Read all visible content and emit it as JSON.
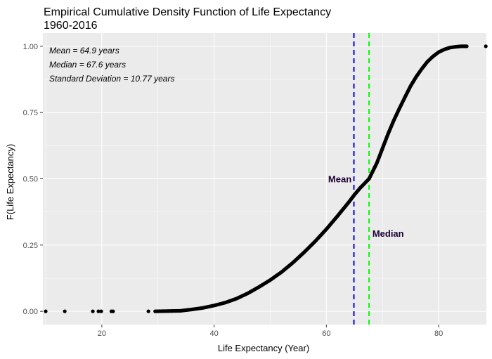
{
  "chart_data": {
    "type": "scatter",
    "title": "Empirical Cumulative Density Function of Life Expectancy",
    "subtitle": "1960-2016",
    "xlabel": "Life Expectancy (Year)",
    "ylabel": "F(Life Expectancy)",
    "xlim": [
      9.5,
      88.5
    ],
    "ylim": [
      -0.05,
      1.05
    ],
    "x_ticks": [
      20,
      40,
      60,
      80
    ],
    "x_tick_labels": [
      "20",
      "40",
      "60",
      "80"
    ],
    "y_ticks": [
      0,
      0.25,
      0.5,
      0.75,
      1.0
    ],
    "y_tick_labels": [
      "0.00",
      "0.25",
      "0.50",
      "0.75",
      "1.00"
    ],
    "grid": true,
    "outlier_points": [
      {
        "x": 10.0,
        "y": 0.0
      },
      {
        "x": 13.4,
        "y": 0.0
      },
      {
        "x": 18.4,
        "y": 0.0
      },
      {
        "x": 19.4,
        "y": 0.0
      },
      {
        "x": 19.9,
        "y": 0.0
      },
      {
        "x": 21.7,
        "y": 0.0
      },
      {
        "x": 22.0,
        "y": 0.0
      },
      {
        "x": 28.3,
        "y": 0.0
      },
      {
        "x": 88.4,
        "y": 1.0
      }
    ],
    "curve_points": [
      {
        "x": 29.5,
        "y": 0.0
      },
      {
        "x": 34,
        "y": 0.002
      },
      {
        "x": 36,
        "y": 0.007
      },
      {
        "x": 38,
        "y": 0.013
      },
      {
        "x": 40,
        "y": 0.022
      },
      {
        "x": 42,
        "y": 0.033
      },
      {
        "x": 44,
        "y": 0.048
      },
      {
        "x": 46,
        "y": 0.068
      },
      {
        "x": 48,
        "y": 0.092
      },
      {
        "x": 50,
        "y": 0.118
      },
      {
        "x": 52,
        "y": 0.148
      },
      {
        "x": 54,
        "y": 0.183
      },
      {
        "x": 56,
        "y": 0.222
      },
      {
        "x": 58,
        "y": 0.264
      },
      {
        "x": 60,
        "y": 0.31
      },
      {
        "x": 62,
        "y": 0.36
      },
      {
        "x": 64,
        "y": 0.412
      },
      {
        "x": 65,
        "y": 0.44
      },
      {
        "x": 66,
        "y": 0.465
      },
      {
        "x": 67.6,
        "y": 0.5
      },
      {
        "x": 69,
        "y": 0.56
      },
      {
        "x": 70,
        "y": 0.615
      },
      {
        "x": 71,
        "y": 0.67
      },
      {
        "x": 72,
        "y": 0.72
      },
      {
        "x": 73,
        "y": 0.765
      },
      {
        "x": 74,
        "y": 0.808
      },
      {
        "x": 75,
        "y": 0.85
      },
      {
        "x": 76,
        "y": 0.885
      },
      {
        "x": 77,
        "y": 0.915
      },
      {
        "x": 78,
        "y": 0.942
      },
      {
        "x": 79,
        "y": 0.962
      },
      {
        "x": 80,
        "y": 0.978
      },
      {
        "x": 81,
        "y": 0.988
      },
      {
        "x": 82,
        "y": 0.995
      },
      {
        "x": 83,
        "y": 0.998
      },
      {
        "x": 84,
        "y": 1.0
      },
      {
        "x": 85,
        "y": 1.0
      }
    ],
    "reference_lines": [
      {
        "label": "Mean",
        "x": 64.9,
        "color": "#0000ff"
      },
      {
        "label": "Median",
        "x": 67.6,
        "color": "#00ff00"
      }
    ],
    "annotations": [
      {
        "name": "mean-label",
        "text": "Mean",
        "x": 62.4,
        "y": 0.5
      },
      {
        "name": "median-label",
        "text": "Median",
        "x": 71.0,
        "y": 0.295
      }
    ],
    "stats_text": [
      "Mean = 64.9 years",
      "Median = 67.6 years",
      "Standard Deviation =  10.77 years"
    ],
    "colors": {
      "panel_background": "#ebebeb",
      "grid_major": "#ffffff",
      "points": "#000000",
      "mean_line": "#0000ff",
      "median_line": "#00ff00",
      "annotation_text": "#1a0033"
    }
  }
}
